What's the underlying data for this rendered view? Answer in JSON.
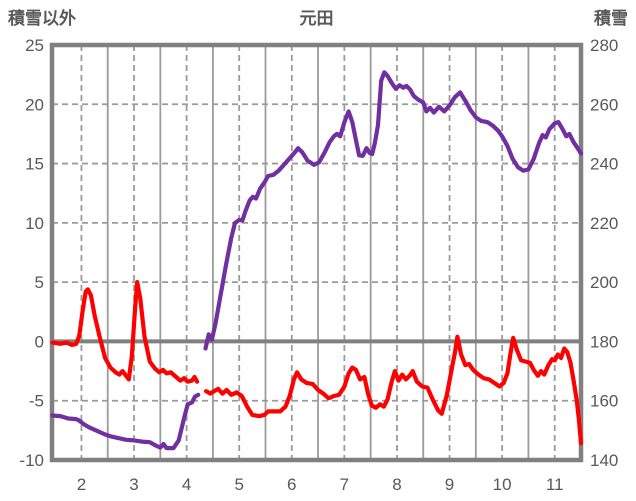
{
  "header": {
    "left_axis_title": "積雪以外",
    "chart_title": "元田",
    "right_axis_title": "積雪"
  },
  "colors": {
    "series_left": "#FF0000",
    "series_right": "#7030A0",
    "grid": "#9B9B9B",
    "axis": "#808080",
    "text": "#595959",
    "background": "#FFFFFF"
  },
  "chart_data": {
    "type": "line",
    "title": "元田",
    "legend": "none",
    "left_axis": {
      "label": "積雪以外",
      "min": -10,
      "max": 25,
      "ticks": [
        25,
        20,
        15,
        10,
        5,
        0,
        -5,
        -10
      ]
    },
    "right_axis": {
      "label": "積雪",
      "min": 140,
      "max": 280,
      "ticks": [
        280,
        260,
        240,
        220,
        200,
        180,
        160,
        140
      ]
    },
    "x_axis": {
      "min": 1.44,
      "max": 11.5,
      "tick_labels": [
        "2",
        "3",
        "4",
        "5",
        "6",
        "7",
        "8",
        "9",
        "10",
        "11"
      ],
      "tick_positions": [
        2,
        3,
        4,
        5,
        6,
        7,
        8,
        9,
        10,
        11
      ],
      "dashed_gridlines": [
        2,
        3,
        4,
        5,
        6,
        7,
        8,
        9,
        10,
        11
      ],
      "solid_gridlines": [
        2.5,
        3.5,
        4.5,
        5.5,
        6.5,
        7.5,
        8.5,
        9.5,
        10.5
      ]
    },
    "series": [
      {
        "name": "積雪以外",
        "axis": "left",
        "color": "#FF0000",
        "points": [
          [
            1.45,
            -0.1
          ],
          [
            1.6,
            -0.2
          ],
          [
            1.72,
            -0.1
          ],
          [
            1.82,
            -0.3
          ],
          [
            1.9,
            -0.2
          ],
          [
            1.96,
            0.5
          ],
          [
            2.02,
            2.5
          ],
          [
            2.08,
            4.2
          ],
          [
            2.12,
            4.4
          ],
          [
            2.18,
            3.9
          ],
          [
            2.25,
            2.2
          ],
          [
            2.35,
            0.3
          ],
          [
            2.45,
            -1.4
          ],
          [
            2.55,
            -2.2
          ],
          [
            2.65,
            -2.6
          ],
          [
            2.72,
            -2.8
          ],
          [
            2.78,
            -2.5
          ],
          [
            2.85,
            -2.9
          ],
          [
            2.9,
            -3.2
          ],
          [
            2.96,
            -1.2
          ],
          [
            3.02,
            2.8
          ],
          [
            3.06,
            5.0
          ],
          [
            3.12,
            3.6
          ],
          [
            3.2,
            0.4
          ],
          [
            3.3,
            -1.7
          ],
          [
            3.4,
            -2.3
          ],
          [
            3.48,
            -2.6
          ],
          [
            3.55,
            -2.4
          ],
          [
            3.62,
            -2.7
          ],
          [
            3.7,
            -2.6
          ],
          [
            3.8,
            -3.0
          ],
          [
            3.88,
            -3.3
          ],
          [
            3.95,
            -3.1
          ],
          [
            4.02,
            -3.4
          ],
          [
            4.1,
            -3.3
          ],
          [
            4.15,
            -3.0
          ],
          [
            4.2,
            -3.4
          ],
          null,
          [
            4.37,
            -4.2
          ],
          [
            4.45,
            -4.4
          ],
          [
            4.52,
            -4.2
          ],
          [
            4.6,
            -4.0
          ],
          [
            4.68,
            -4.4
          ],
          [
            4.76,
            -4.1
          ],
          [
            4.85,
            -4.5
          ],
          [
            4.95,
            -4.3
          ],
          [
            5.05,
            -4.6
          ],
          [
            5.15,
            -5.5
          ],
          [
            5.25,
            -6.2
          ],
          [
            5.38,
            -6.3
          ],
          [
            5.48,
            -6.2
          ],
          [
            5.55,
            -5.9
          ],
          [
            5.68,
            -5.9
          ],
          [
            5.78,
            -5.9
          ],
          [
            5.88,
            -5.5
          ],
          [
            5.96,
            -4.6
          ],
          [
            6.04,
            -3.2
          ],
          [
            6.1,
            -2.6
          ],
          [
            6.18,
            -3.2
          ],
          [
            6.28,
            -3.5
          ],
          [
            6.4,
            -3.6
          ],
          [
            6.5,
            -4.1
          ],
          [
            6.6,
            -4.4
          ],
          [
            6.7,
            -4.8
          ],
          [
            6.8,
            -4.6
          ],
          [
            6.9,
            -4.5
          ],
          [
            7.0,
            -3.8
          ],
          [
            7.08,
            -2.7
          ],
          [
            7.15,
            -2.2
          ],
          [
            7.22,
            -2.4
          ],
          [
            7.3,
            -3.2
          ],
          [
            7.38,
            -3.0
          ],
          [
            7.45,
            -4.4
          ],
          [
            7.52,
            -5.4
          ],
          [
            7.6,
            -5.6
          ],
          [
            7.68,
            -5.3
          ],
          [
            7.75,
            -5.5
          ],
          [
            7.82,
            -4.9
          ],
          [
            7.9,
            -3.4
          ],
          [
            7.96,
            -2.5
          ],
          [
            8.03,
            -3.3
          ],
          [
            8.1,
            -2.8
          ],
          [
            8.17,
            -3.2
          ],
          [
            8.24,
            -2.9
          ],
          [
            8.3,
            -2.5
          ],
          [
            8.38,
            -3.4
          ],
          [
            8.48,
            -3.8
          ],
          [
            8.58,
            -3.9
          ],
          [
            8.68,
            -4.9
          ],
          [
            8.78,
            -5.8
          ],
          [
            8.85,
            -6.1
          ],
          [
            8.95,
            -4.5
          ],
          [
            9.03,
            -2.6
          ],
          [
            9.1,
            -1.0
          ],
          [
            9.15,
            0.4
          ],
          [
            9.22,
            -1.1
          ],
          [
            9.3,
            -2.0
          ],
          [
            9.37,
            -1.9
          ],
          [
            9.45,
            -2.4
          ],
          [
            9.55,
            -2.8
          ],
          [
            9.65,
            -3.1
          ],
          [
            9.75,
            -3.2
          ],
          [
            9.85,
            -3.5
          ],
          [
            9.95,
            -3.8
          ],
          [
            10.03,
            -3.5
          ],
          [
            10.1,
            -2.7
          ],
          [
            10.16,
            -1.0
          ],
          [
            10.21,
            0.3
          ],
          [
            10.28,
            -0.7
          ],
          [
            10.36,
            -1.6
          ],
          [
            10.45,
            -1.7
          ],
          [
            10.53,
            -1.8
          ],
          [
            10.6,
            -2.4
          ],
          [
            10.68,
            -2.9
          ],
          [
            10.74,
            -2.5
          ],
          [
            10.8,
            -2.8
          ],
          [
            10.88,
            -2.0
          ],
          [
            10.95,
            -1.5
          ],
          [
            11.0,
            -1.6
          ],
          [
            11.06,
            -1.1
          ],
          [
            11.12,
            -1.4
          ],
          [
            11.18,
            -0.6
          ],
          [
            11.24,
            -0.9
          ],
          [
            11.3,
            -1.8
          ],
          [
            11.36,
            -3.3
          ],
          [
            11.42,
            -5.0
          ],
          [
            11.46,
            -6.6
          ],
          [
            11.5,
            -8.6
          ]
        ]
      },
      {
        "name": "積雪",
        "axis": "right",
        "color": "#7030A0",
        "points": [
          [
            1.45,
            155.0
          ],
          [
            1.6,
            154.8
          ],
          [
            1.75,
            154.0
          ],
          [
            1.9,
            153.8
          ],
          [
            1.95,
            153.4
          ],
          [
            2.05,
            152.0
          ],
          [
            2.15,
            151.0
          ],
          [
            2.3,
            149.8
          ],
          [
            2.45,
            148.6
          ],
          [
            2.55,
            148.0
          ],
          [
            2.7,
            147.4
          ],
          [
            2.85,
            146.8
          ],
          [
            3.0,
            146.6
          ],
          [
            3.15,
            146.2
          ],
          [
            3.3,
            146.0
          ],
          [
            3.4,
            145.0
          ],
          [
            3.5,
            144.2
          ],
          [
            3.56,
            145.4
          ],
          [
            3.62,
            144.0
          ],
          [
            3.75,
            144.0
          ],
          [
            3.85,
            146.6
          ],
          [
            3.95,
            154.0
          ],
          [
            4.02,
            158.8
          ],
          [
            4.1,
            159.4
          ],
          [
            4.16,
            161.4
          ],
          [
            4.22,
            162.0
          ],
          null,
          [
            4.36,
            177.6
          ],
          [
            4.42,
            182.4
          ],
          [
            4.48,
            180.6
          ],
          [
            4.55,
            186.0
          ],
          [
            4.65,
            196.0
          ],
          [
            4.75,
            206.0
          ],
          [
            4.85,
            215.0
          ],
          [
            4.92,
            220.0
          ],
          [
            5.0,
            221.0
          ],
          [
            5.06,
            220.8
          ],
          [
            5.12,
            224.0
          ],
          [
            5.2,
            227.6
          ],
          [
            5.26,
            228.8
          ],
          [
            5.32,
            228.2
          ],
          [
            5.4,
            231.6
          ],
          [
            5.48,
            233.6
          ],
          [
            5.55,
            235.8
          ],
          [
            5.65,
            236.2
          ],
          [
            5.75,
            237.6
          ],
          [
            5.85,
            239.6
          ],
          [
            5.95,
            241.6
          ],
          [
            6.05,
            243.6
          ],
          [
            6.12,
            245.2
          ],
          [
            6.2,
            243.8
          ],
          [
            6.3,
            241.0
          ],
          [
            6.42,
            239.6
          ],
          [
            6.52,
            240.4
          ],
          [
            6.62,
            243.6
          ],
          [
            6.72,
            247.2
          ],
          [
            6.8,
            249.2
          ],
          [
            6.86,
            250.0
          ],
          [
            6.92,
            249.2
          ],
          [
            7.0,
            254.0
          ],
          [
            7.08,
            257.6
          ],
          [
            7.15,
            254.0
          ],
          [
            7.22,
            248.0
          ],
          [
            7.28,
            242.8
          ],
          [
            7.35,
            242.6
          ],
          [
            7.42,
            245.2
          ],
          [
            7.48,
            243.6
          ],
          [
            7.53,
            243.2
          ],
          [
            7.58,
            247.0
          ],
          [
            7.64,
            253.0
          ],
          [
            7.7,
            268.0
          ],
          [
            7.76,
            270.8
          ],
          [
            7.82,
            269.6
          ],
          [
            7.9,
            267.2
          ],
          [
            7.98,
            265.2
          ],
          [
            8.05,
            266.4
          ],
          [
            8.12,
            265.6
          ],
          [
            8.18,
            266.2
          ],
          [
            8.25,
            265.0
          ],
          [
            8.32,
            262.8
          ],
          [
            8.4,
            261.6
          ],
          [
            8.5,
            260.6
          ],
          [
            8.56,
            257.6
          ],
          [
            8.63,
            258.8
          ],
          [
            8.7,
            257.2
          ],
          [
            8.8,
            259.2
          ],
          [
            8.9,
            257.6
          ],
          [
            9.0,
            259.6
          ],
          [
            9.1,
            262.4
          ],
          [
            9.2,
            264.0
          ],
          [
            9.3,
            261.2
          ],
          [
            9.4,
            258.0
          ],
          [
            9.5,
            255.6
          ],
          [
            9.6,
            254.4
          ],
          [
            9.72,
            254.0
          ],
          [
            9.82,
            252.8
          ],
          [
            9.92,
            251.2
          ],
          [
            10.0,
            249.2
          ],
          [
            10.1,
            246.0
          ],
          [
            10.2,
            241.6
          ],
          [
            10.3,
            238.8
          ],
          [
            10.4,
            237.6
          ],
          [
            10.5,
            238.0
          ],
          [
            10.6,
            241.6
          ],
          [
            10.7,
            246.8
          ],
          [
            10.77,
            249.6
          ],
          [
            10.83,
            248.8
          ],
          [
            10.9,
            251.6
          ],
          [
            11.0,
            253.6
          ],
          [
            11.07,
            254.0
          ],
          [
            11.15,
            251.6
          ],
          [
            11.22,
            249.2
          ],
          [
            11.28,
            250.0
          ],
          [
            11.36,
            247.2
          ],
          [
            11.45,
            244.8
          ],
          [
            11.5,
            243.4
          ]
        ]
      }
    ]
  }
}
